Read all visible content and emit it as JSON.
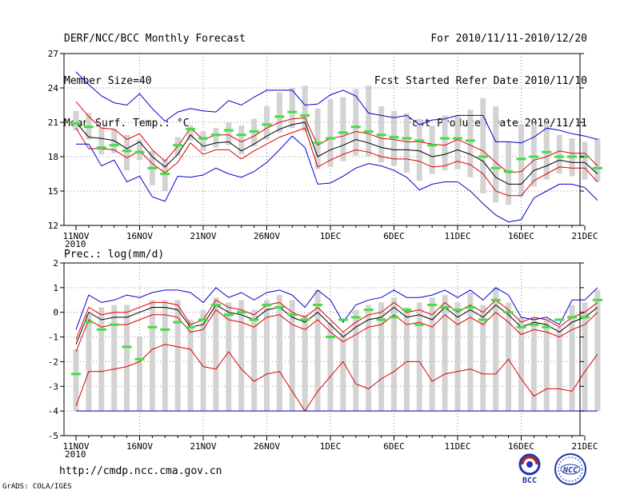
{
  "header": {
    "left": [
      "DERF/NCC/BCC Monthly Forecast",
      "Member Size=40",
      "Mean Surf. Temp.: °C"
    ],
    "right": [
      "For 2010/11/11-2010/12/20",
      "Fcst Started Refer Date 2010/11/10",
      "Fcst Produced Date 2010/11/11"
    ]
  },
  "footer": {
    "url": "http://cmdp.ncc.cma.gov.cn",
    "credit": "GrADS: COLA/IGES"
  },
  "logos": {
    "bcc_text": "BCC",
    "ncc_text": "NCC"
  },
  "colors": {
    "ensemble_mean": "#000000",
    "spread_band": "#e00000",
    "min_max": "#0000d0",
    "member_mean": "#44dd44",
    "range_bar": "#d3d3d3"
  },
  "chart_data": [
    {
      "type": "line",
      "title": "Mean Surf. Temp.: °C",
      "x_tick_labels": [
        "11NOV\n2010",
        "16NOV",
        "21NOV",
        "26NOV",
        "1DEC",
        "6DEC",
        "11DEC",
        "16DEC",
        "21DEC"
      ],
      "ylim": [
        12,
        27
      ],
      "yticks": [
        12,
        15,
        18,
        21,
        24,
        27
      ],
      "ytick_labels": [
        "12",
        "15",
        "18",
        "21",
        "24",
        "27"
      ],
      "grid": true,
      "series": [
        {
          "name": "ensemble mean",
          "values": [
            21.0,
            19.7,
            19.6,
            19.4,
            18.7,
            19.3,
            18.0,
            17.1,
            18.2,
            19.9,
            18.9,
            19.2,
            19.3,
            18.5,
            19.1,
            19.8,
            20.4,
            20.8,
            21.0,
            18.0,
            18.6,
            19.0,
            19.5,
            19.2,
            18.8,
            18.6,
            18.6,
            18.5,
            18.0,
            18.2,
            18.6,
            18.2,
            17.6,
            16.2,
            15.6,
            15.6,
            16.8,
            17.2,
            17.7,
            17.5,
            17.5,
            16.5
          ]
        },
        {
          "name": "spread upper",
          "values": [
            22.8,
            21.5,
            20.5,
            20.4,
            19.5,
            20.0,
            18.6,
            17.6,
            18.9,
            20.5,
            19.5,
            19.9,
            19.9,
            19.3,
            19.8,
            20.5,
            21.0,
            21.3,
            21.4,
            19.0,
            19.6,
            19.8,
            20.2,
            20.0,
            19.6,
            19.5,
            19.3,
            19.3,
            19.1,
            19.0,
            19.5,
            19.0,
            18.5,
            17.5,
            16.6,
            16.7,
            17.7,
            18.0,
            18.5,
            18.3,
            18.3,
            17.2
          ]
        },
        {
          "name": "spread lower",
          "values": [
            20.5,
            18.7,
            18.7,
            18.6,
            17.9,
            18.5,
            17.4,
            16.6,
            17.5,
            19.2,
            18.2,
            18.6,
            18.6,
            17.8,
            18.5,
            19.1,
            19.7,
            20.1,
            20.5,
            17.1,
            17.7,
            18.2,
            18.6,
            18.4,
            18.0,
            17.8,
            17.8,
            17.6,
            17.1,
            17.2,
            17.6,
            17.3,
            16.5,
            15.0,
            14.6,
            14.6,
            15.9,
            16.5,
            17.1,
            17.0,
            17.0,
            15.8
          ]
        },
        {
          "name": "max",
          "values": [
            25.4,
            24.3,
            23.3,
            22.7,
            22.5,
            23.5,
            22.2,
            21.1,
            21.9,
            22.2,
            22.0,
            21.9,
            22.9,
            22.5,
            23.2,
            23.8,
            23.8,
            23.8,
            22.5,
            22.6,
            23.4,
            23.8,
            23.3,
            21.8,
            21.6,
            21.4,
            21.6,
            20.8,
            21.2,
            21.3,
            21.6,
            21.6,
            21.6,
            19.3,
            19.3,
            19.2,
            19.7,
            20.5,
            20.3,
            20.0,
            19.8,
            19.5
          ]
        },
        {
          "name": "min",
          "values": [
            19.1,
            19.1,
            17.2,
            17.7,
            15.8,
            16.3,
            14.5,
            14.1,
            16.3,
            16.2,
            16.4,
            17.0,
            16.5,
            16.2,
            16.7,
            17.5,
            18.6,
            19.8,
            18.8,
            15.6,
            15.7,
            16.3,
            17.0,
            17.4,
            17.2,
            16.8,
            16.2,
            15.1,
            15.6,
            15.8,
            15.8,
            15.0,
            13.9,
            12.9,
            12.3,
            12.5,
            14.4,
            15.0,
            15.6,
            15.6,
            15.3,
            14.2
          ]
        },
        {
          "name": "member mean marks",
          "values": [
            20.9,
            20.6,
            18.8,
            19.0,
            18.5,
            18.4,
            17.0,
            16.5,
            19.0,
            20.4,
            19.6,
            19.9,
            20.3,
            19.9,
            20.2,
            20.8,
            21.5,
            21.9,
            21.6,
            19.2,
            19.6,
            20.1,
            20.6,
            20.2,
            19.9,
            19.7,
            19.6,
            19.4,
            19.0,
            19.6,
            19.6,
            19.4,
            18.0,
            17.0,
            16.7,
            17.8,
            18.0,
            18.4,
            18.0,
            18.0,
            18.0,
            17.0
          ]
        }
      ],
      "range_bars": {
        "low": [
          20.3,
          19.5,
          18.2,
          18.3,
          16.8,
          17.7,
          15.5,
          15.0,
          18.1,
          19.4,
          18.5,
          18.8,
          19.0,
          18.2,
          18.9,
          19.5,
          20.1,
          20.5,
          20.2,
          16.9,
          17.1,
          17.6,
          18.1,
          18.0,
          17.5,
          17.2,
          16.6,
          15.9,
          16.5,
          16.8,
          16.9,
          16.2,
          14.8,
          14.0,
          13.8,
          14.5,
          15.4,
          16.0,
          16.5,
          16.3,
          16.0,
          15.8
        ],
        "high": [
          22.0,
          21.8,
          20.6,
          20.4,
          19.9,
          19.5,
          18.5,
          17.8,
          19.7,
          20.7,
          20.2,
          20.5,
          21.0,
          20.7,
          21.3,
          22.4,
          23.6,
          24.0,
          24.2,
          22.2,
          23.0,
          23.2,
          23.9,
          24.2,
          22.4,
          22.0,
          21.8,
          21.3,
          20.7,
          21.6,
          21.6,
          22.1,
          23.1,
          22.4,
          19.3,
          20.8,
          20.8,
          20.9,
          19.9,
          19.6,
          19.3,
          19.6
        ]
      }
    },
    {
      "type": "line",
      "title": "Prec.: log(mm/d)",
      "x_tick_labels": [
        "11NOV\n2010",
        "16NOV",
        "21NOV",
        "26NOV",
        "1DEC",
        "6DEC",
        "11DEC",
        "16DEC",
        "21DEC"
      ],
      "ylim": [
        -5,
        2
      ],
      "yticks": [
        -5,
        -4,
        -3,
        -2,
        -1,
        0,
        1,
        2
      ],
      "ytick_labels": [
        "-5",
        "-4",
        "-3",
        "-2",
        "-1",
        "0",
        "1",
        "2"
      ],
      "grid": true,
      "series": [
        {
          "name": "ensemble mean",
          "values": [
            -1.3,
            0.0,
            -0.3,
            -0.2,
            -0.2,
            0.0,
            0.2,
            0.2,
            0.1,
            -0.6,
            -0.5,
            0.3,
            0.0,
            -0.1,
            -0.3,
            0.1,
            0.2,
            -0.2,
            -0.4,
            0.0,
            -0.5,
            -1.0,
            -0.6,
            -0.3,
            -0.2,
            0.2,
            -0.2,
            -0.1,
            -0.3,
            0.2,
            -0.2,
            0.1,
            -0.2,
            0.3,
            -0.1,
            -0.6,
            -0.4,
            -0.5,
            -0.8,
            -0.4,
            -0.2,
            0.2
          ]
        },
        {
          "name": "spread upper",
          "values": [
            -1.1,
            0.2,
            -0.1,
            0.0,
            0.0,
            0.2,
            0.4,
            0.4,
            0.3,
            -0.5,
            -0.3,
            0.5,
            0.2,
            0.1,
            -0.1,
            0.3,
            0.4,
            0.0,
            -0.2,
            0.2,
            -0.3,
            -0.8,
            -0.4,
            -0.1,
            0.0,
            0.4,
            0.0,
            0.1,
            -0.1,
            0.4,
            0.0,
            0.3,
            0.0,
            0.5,
            0.1,
            -0.4,
            -0.2,
            -0.3,
            -0.6,
            -0.2,
            0.0,
            0.4
          ]
        },
        {
          "name": "spread lower",
          "values": [
            -1.6,
            -0.3,
            -0.6,
            -0.5,
            -0.5,
            -0.3,
            -0.1,
            -0.1,
            -0.2,
            -0.8,
            -0.7,
            0.1,
            -0.3,
            -0.4,
            -0.6,
            -0.2,
            -0.1,
            -0.5,
            -0.7,
            -0.3,
            -0.8,
            -1.2,
            -0.9,
            -0.6,
            -0.5,
            -0.1,
            -0.5,
            -0.4,
            -0.6,
            -0.1,
            -0.5,
            -0.2,
            -0.5,
            0.0,
            -0.4,
            -0.9,
            -0.7,
            -0.8,
            -1.0,
            -0.7,
            -0.5,
            0.0
          ]
        },
        {
          "name": "min",
          "values": [
            -3.8,
            -2.4,
            -2.4,
            -2.3,
            -2.2,
            -2.0,
            -1.5,
            -1.3,
            -1.4,
            -1.5,
            -2.2,
            -2.3,
            -1.6,
            -2.3,
            -2.8,
            -2.5,
            -2.4,
            -3.2,
            -4.0,
            -3.2,
            -2.6,
            -2.0,
            -2.9,
            -3.1,
            -2.7,
            -2.4,
            -2.0,
            -2.0,
            -2.8,
            -2.5,
            -2.4,
            -2.3,
            -2.5,
            -2.5,
            -1.9,
            -2.7,
            -3.4,
            -3.1,
            -3.1,
            -3.2,
            -2.4,
            -1.7
          ]
        },
        {
          "name": "max",
          "values": [
            -0.7,
            0.7,
            0.4,
            0.5,
            0.7,
            0.6,
            0.8,
            0.9,
            0.9,
            0.8,
            0.4,
            1.0,
            0.6,
            0.8,
            0.5,
            0.8,
            0.9,
            0.7,
            0.2,
            0.9,
            0.5,
            -0.4,
            0.3,
            0.5,
            0.6,
            0.9,
            0.6,
            0.6,
            0.7,
            0.9,
            0.6,
            0.9,
            0.5,
            1.0,
            0.7,
            -0.2,
            -0.3,
            -0.2,
            -0.5,
            0.5,
            0.5,
            1.0
          ]
        },
        {
          "name": "floor",
          "values": [
            -4.0,
            -4.0,
            -4.0,
            -4.0,
            -4.0,
            -4.0,
            -4.0,
            -4.0,
            -4.0,
            -4.0,
            -4.0,
            -4.0,
            -4.0,
            -4.0,
            -4.0,
            -4.0,
            -4.0,
            -4.0,
            -4.0,
            -4.0,
            -4.0,
            -4.0,
            -4.0,
            -4.0,
            -4.0,
            -4.0,
            -4.0,
            -4.0,
            -4.0,
            -4.0,
            -4.0,
            -4.0,
            -4.0,
            -4.0,
            -4.0,
            -4.0,
            -4.0,
            -4.0,
            -4.0,
            -4.0,
            -4.0,
            -4.0
          ]
        },
        {
          "name": "member mean marks",
          "values": [
            -2.5,
            -0.4,
            -0.7,
            -0.5,
            -1.4,
            -1.9,
            -0.6,
            -0.7,
            -0.4,
            -0.6,
            -0.3,
            0.3,
            -0.1,
            0.0,
            -0.3,
            0.3,
            0.2,
            -0.1,
            -0.3,
            0.3,
            -1.0,
            -0.3,
            -0.2,
            0.1,
            -0.3,
            -0.2,
            0.1,
            -0.5,
            0.3,
            0.2,
            0.1,
            0.2,
            -0.3,
            0.5,
            0.0,
            -0.6,
            -0.5,
            -0.6,
            -0.3,
            -0.2,
            -0.2,
            0.5
          ]
        }
      ],
      "range_bars": {
        "low": [
          -4.0,
          -4.0,
          -4.0,
          -4.0,
          -4.0,
          -4.0,
          -4.0,
          -4.0,
          -4.0,
          -4.0,
          -4.0,
          -4.0,
          -4.0,
          -4.0,
          -4.0,
          -4.0,
          -4.0,
          -4.0,
          -4.0,
          -4.0,
          -4.0,
          -4.0,
          -4.0,
          -4.0,
          -4.0,
          -4.0,
          -4.0,
          -4.0,
          -4.0,
          -4.0,
          -4.0,
          -4.0,
          -4.0,
          -4.0,
          -4.0,
          -4.0,
          -4.0,
          -4.0,
          -4.0,
          -4.0,
          -4.0,
          -4.0
        ],
        "high": [
          -1.5,
          -0.1,
          0.2,
          0.3,
          0.3,
          -1.0,
          0.5,
          0.5,
          0.5,
          -0.3,
          0.1,
          0.6,
          0.4,
          0.5,
          0.1,
          0.5,
          0.7,
          0.5,
          -0.1,
          0.9,
          -0.4,
          -0.8,
          0.1,
          0.3,
          0.4,
          0.6,
          0.2,
          0.4,
          0.6,
          0.7,
          0.4,
          0.8,
          0.3,
          1.0,
          0.4,
          -0.2,
          -0.2,
          -0.3,
          -0.6,
          0.3,
          0.4,
          0.9
        ]
      }
    }
  ]
}
